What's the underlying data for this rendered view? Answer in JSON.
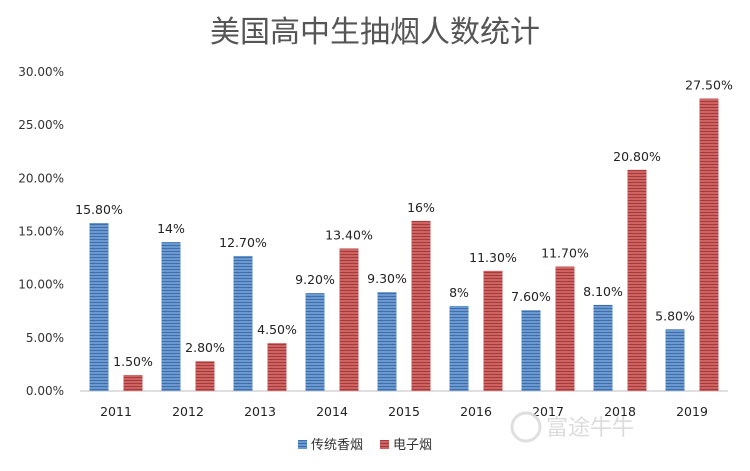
{
  "chart_data": {
    "type": "bar",
    "title": "美国高中生抽烟人数统计",
    "categories": [
      "2011",
      "2012",
      "2013",
      "2014",
      "2015",
      "2016",
      "2017",
      "2018",
      "2019"
    ],
    "series": [
      {
        "name": "传统香烟",
        "color": "#5b8ac4",
        "values": [
          15.8,
          14.0,
          12.7,
          9.2,
          9.3,
          8.0,
          7.6,
          8.1,
          5.8
        ],
        "labels": [
          "15.80%",
          "14%",
          "12.70%",
          "9.20%",
          "9.30%",
          "8%",
          "7.60%",
          "8.10%",
          "5.80%"
        ]
      },
      {
        "name": "电子烟",
        "color": "#c65050",
        "values": [
          1.5,
          2.8,
          4.5,
          13.4,
          16.0,
          11.3,
          11.7,
          20.8,
          27.5
        ],
        "labels": [
          "1.50%",
          "2.80%",
          "4.50%",
          "13.40%",
          "16%",
          "11.30%",
          "11.70%",
          "20.80%",
          "27.50%"
        ]
      }
    ],
    "ylim": [
      0,
      30
    ],
    "yticks": [
      "0.00%",
      "5.00%",
      "10.00%",
      "15.00%",
      "20.00%",
      "25.00%",
      "30.00%"
    ],
    "xlabel": "",
    "ylabel": "",
    "grid": false,
    "legend_position": "bottom"
  },
  "watermark": {
    "text": "富途牛牛",
    "icon": "futu-logo-icon"
  }
}
